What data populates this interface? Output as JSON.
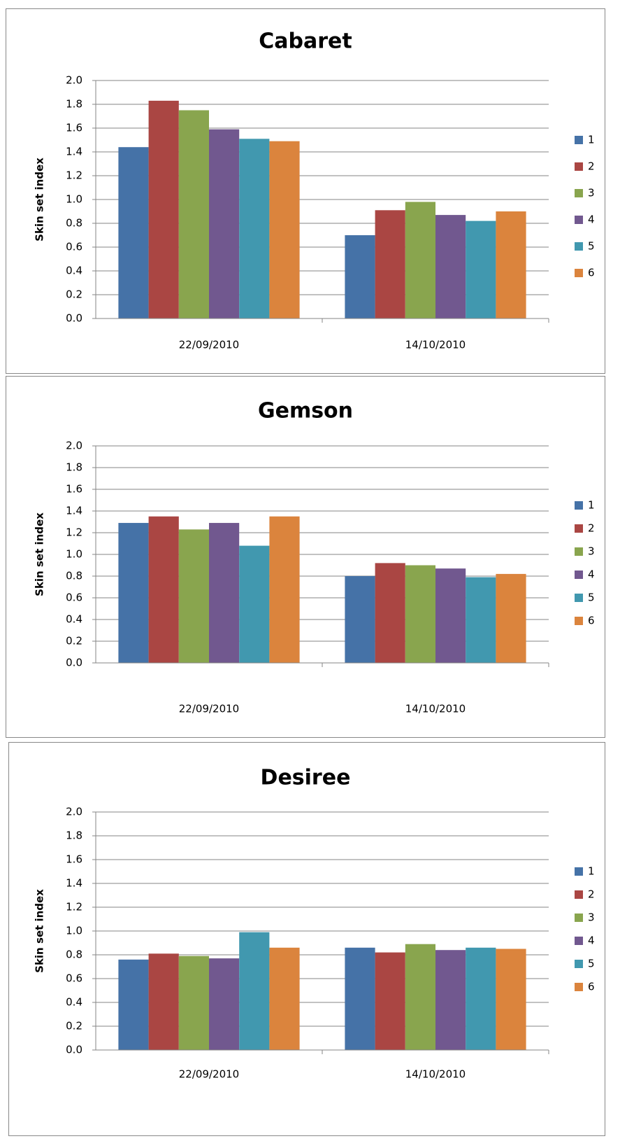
{
  "chart_data": [
    {
      "type": "bar",
      "title": "Cabaret",
      "y_label": "Skin set index",
      "categories": [
        "22/09/2010",
        "14/10/2010"
      ],
      "series": [
        {
          "name": "1",
          "color": "#4572a7",
          "values": [
            1.44,
            0.7
          ]
        },
        {
          "name": "2",
          "color": "#aa4643",
          "values": [
            1.83,
            0.91
          ]
        },
        {
          "name": "3",
          "color": "#89a54e",
          "values": [
            1.75,
            0.98
          ]
        },
        {
          "name": "4",
          "color": "#71588f",
          "values": [
            1.59,
            0.87
          ]
        },
        {
          "name": "5",
          "color": "#4198af",
          "values": [
            1.51,
            0.82
          ]
        },
        {
          "name": "6",
          "color": "#db843d",
          "values": [
            1.49,
            0.9
          ]
        }
      ],
      "ylim": [
        0,
        2
      ],
      "yticks": [
        {
          "value": 0,
          "label": "0.0"
        },
        0.2,
        0.4,
        0.6,
        0.8,
        {
          "value": 1,
          "label": "1.0"
        },
        1.2,
        1.4,
        1.6,
        1.8,
        {
          "value": 2,
          "label": "2.0"
        }
      ],
      "grid": true,
      "legend": "right"
    },
    {
      "type": "bar",
      "title": "Gemson",
      "y_label": "Skin set index",
      "categories": [
        "22/09/2010",
        "14/10/2010"
      ],
      "series": [
        {
          "name": "1",
          "color": "#4572a7",
          "values": [
            1.29,
            0.8
          ]
        },
        {
          "name": "2",
          "color": "#aa4643",
          "values": [
            1.35,
            0.92
          ]
        },
        {
          "name": "3",
          "color": "#89a54e",
          "values": [
            1.23,
            0.9
          ]
        },
        {
          "name": "4",
          "color": "#71588f",
          "values": [
            1.29,
            0.87
          ]
        },
        {
          "name": "5",
          "color": "#4198af",
          "values": [
            1.08,
            0.79
          ]
        },
        {
          "name": "6",
          "color": "#db843d",
          "values": [
            1.35,
            0.82
          ]
        }
      ],
      "ylim": [
        0,
        2
      ],
      "yticks": [
        {
          "value": 0,
          "label": "0.0"
        },
        0.2,
        0.4,
        0.6,
        0.8,
        {
          "value": 1,
          "label": "1.0"
        },
        1.2,
        1.4,
        1.6,
        1.8,
        {
          "value": 2,
          "label": "2.0"
        }
      ],
      "grid": true,
      "legend": "right"
    },
    {
      "type": "bar",
      "title": "Desiree",
      "y_label": "Skin set index",
      "categories": [
        "22/09/2010",
        "14/10/2010"
      ],
      "series": [
        {
          "name": "1",
          "color": "#4572a7",
          "values": [
            0.76,
            0.86
          ]
        },
        {
          "name": "2",
          "color": "#aa4643",
          "values": [
            0.81,
            0.82
          ]
        },
        {
          "name": "3",
          "color": "#89a54e",
          "values": [
            0.79,
            0.89
          ]
        },
        {
          "name": "4",
          "color": "#71588f",
          "values": [
            0.77,
            0.84
          ]
        },
        {
          "name": "5",
          "color": "#4198af",
          "values": [
            0.99,
            0.86
          ]
        },
        {
          "name": "6",
          "color": "#db843d",
          "values": [
            0.86,
            0.85
          ]
        }
      ],
      "ylim": [
        0,
        2
      ],
      "yticks": [
        {
          "value": 0,
          "label": "0.0"
        },
        0.2,
        0.4,
        0.6,
        0.8,
        {
          "value": 1,
          "label": "1.0"
        },
        1.2,
        1.4,
        1.6,
        1.8,
        {
          "value": 2,
          "label": "2.0"
        }
      ],
      "grid": true,
      "legend": "right"
    }
  ]
}
